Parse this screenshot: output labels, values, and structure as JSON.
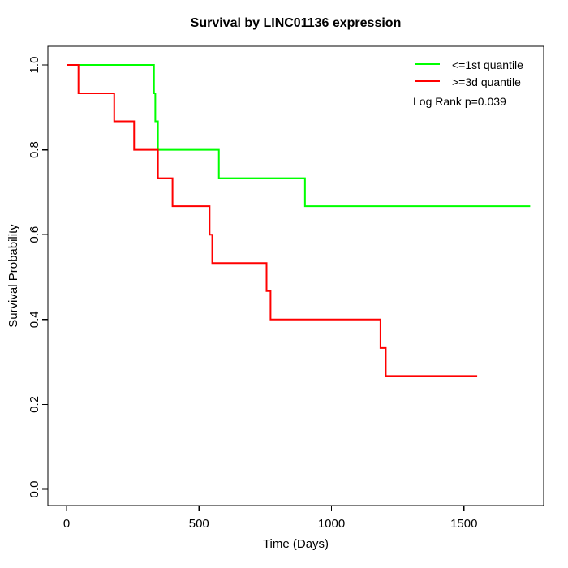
{
  "title": "Survival by LINC01136 expression",
  "x_axis": {
    "label": "Time (Days)",
    "tick_labels": [
      "0",
      "500",
      "1000",
      "1500"
    ]
  },
  "y_axis": {
    "label": "Survival Probability",
    "tick_labels": [
      "0.0",
      "0.2",
      "0.4",
      "0.6",
      "0.8",
      "1.0"
    ]
  },
  "legend": {
    "items": [
      {
        "label": "<=1st quantile",
        "color": "#00ff00"
      },
      {
        "label": ">=3d quantile",
        "color": "#ff0000"
      }
    ],
    "annotation": "Log Rank p=0.039"
  },
  "chart_data": {
    "type": "line",
    "subtype": "kaplan-meier-step",
    "title": "Survival by LINC01136 expression",
    "xlabel": "Time (Days)",
    "ylabel": "Survival Probability",
    "xlim": [
      0,
      1750
    ],
    "ylim": [
      0.0,
      1.0
    ],
    "x_ticks": [
      0,
      500,
      1000,
      1500
    ],
    "y_ticks": [
      0.0,
      0.2,
      0.4,
      0.6,
      0.8,
      1.0
    ],
    "grid": false,
    "legend_position": "top-right",
    "annotation": "Log Rank p=0.039",
    "series": [
      {
        "name": "<=1st quantile",
        "color": "#00ff00",
        "steps": [
          [
            0,
            1.0
          ],
          [
            330,
            0.933
          ],
          [
            335,
            0.867
          ],
          [
            345,
            0.8
          ],
          [
            575,
            0.733
          ],
          [
            900,
            0.667
          ]
        ],
        "end_time": 1750,
        "final_survival": 0.667
      },
      {
        "name": ">=3d quantile",
        "color": "#ff0000",
        "steps": [
          [
            0,
            1.0
          ],
          [
            45,
            0.933
          ],
          [
            180,
            0.867
          ],
          [
            255,
            0.8
          ],
          [
            345,
            0.733
          ],
          [
            400,
            0.667
          ],
          [
            540,
            0.6
          ],
          [
            550,
            0.533
          ],
          [
            755,
            0.467
          ],
          [
            770,
            0.4
          ],
          [
            1185,
            0.333
          ],
          [
            1205,
            0.267
          ]
        ],
        "end_time": 1550,
        "final_survival": 0.267
      }
    ]
  }
}
